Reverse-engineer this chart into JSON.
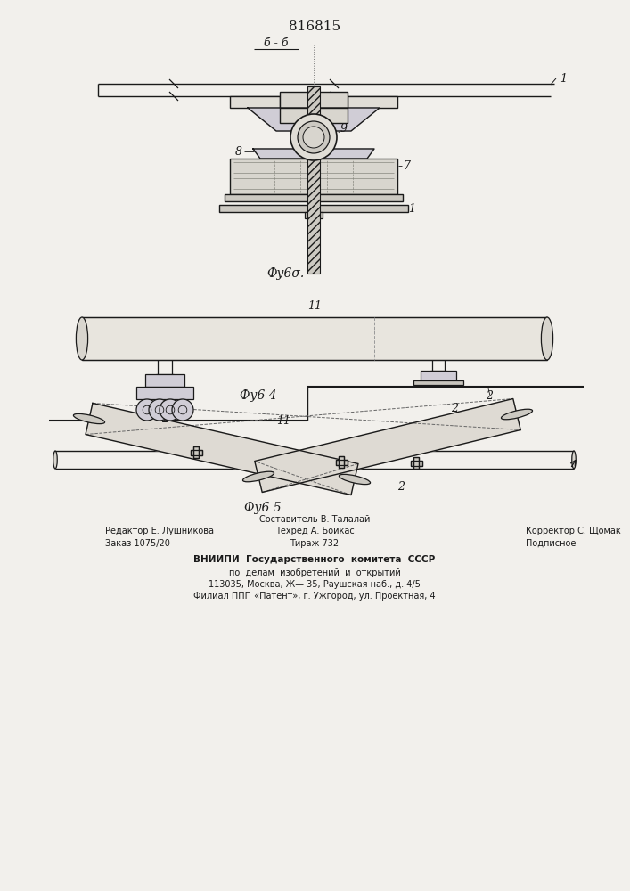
{
  "title": "816815",
  "section_label": "б - б",
  "bg_color": "#f2f0ec",
  "line_color": "#1a1a1a",
  "footer_left_line1": "Редактор Е. Лушникова",
  "footer_left_line2": "Заказ 1075/20",
  "footer_center_line0": "Составитель В. Талалай",
  "footer_center_line1": "Техред А. Бойкас",
  "footer_center_line2": "Тираж 732",
  "footer_right_line1": "Корректор С. Щомак",
  "footer_right_line2": "Подписное",
  "footer_vniipи": "ВНИИПИ  Государственного  комитета  СССР",
  "footer_po": "по  делам  изобретений  и  открытий",
  "footer_addr": "113035, Москва, Ж— 35, Раушская наб., д. 4/5",
  "footer_filial": "Филиал ППП «Патент», г. Ужгород, ул. Проектная, 4"
}
